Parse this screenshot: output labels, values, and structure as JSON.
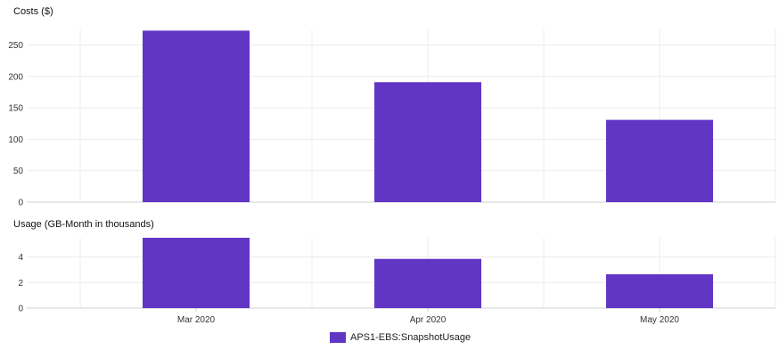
{
  "chart_data": [
    {
      "type": "bar",
      "title": "Costs ($)",
      "categories": [
        "Mar 2020",
        "Apr 2020",
        "May 2020"
      ],
      "series": [
        {
          "name": "APS1-EBS:SnapshotUsage",
          "values": [
            273,
            191,
            131
          ]
        }
      ],
      "ylim": [
        0,
        275
      ],
      "yticks": [
        "0",
        "50",
        "100",
        "150",
        "200",
        "250"
      ],
      "grid": true
    },
    {
      "type": "bar",
      "title": "Usage (GB-Month in thousands)",
      "categories": [
        "Mar 2020",
        "Apr 2020",
        "May 2020"
      ],
      "series": [
        {
          "name": "APS1-EBS:SnapshotUsage",
          "values": [
            5.5,
            3.85,
            2.65
          ]
        }
      ],
      "ylim": [
        0,
        5.5
      ],
      "yticks": [
        "0",
        "2",
        "4"
      ],
      "grid": true,
      "legend": "bottom-center"
    }
  ],
  "colors": {
    "bar": "#6236c5",
    "grid": "#ececec",
    "axis": "#cfcfcf"
  }
}
